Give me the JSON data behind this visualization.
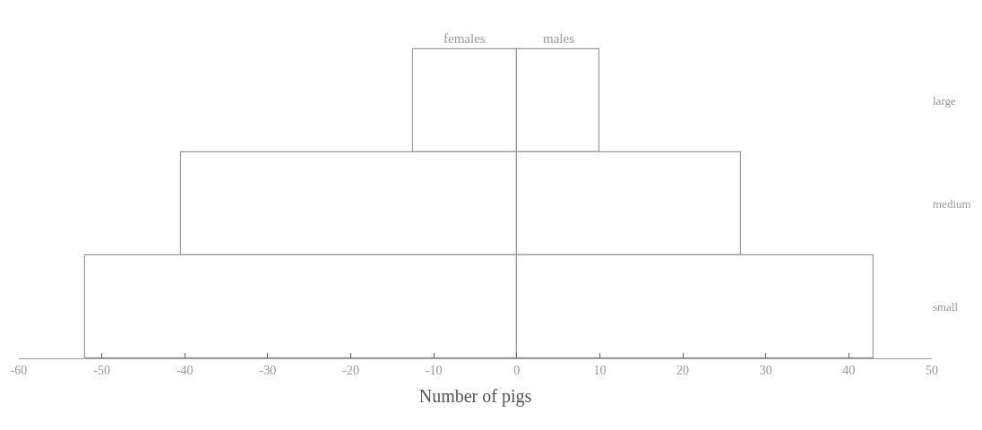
{
  "chart_data": {
    "type": "bar",
    "orientation": "horizontal",
    "stacked": true,
    "categories": [
      "large",
      "medium",
      "small"
    ],
    "series": [
      {
        "name": "females",
        "color": "#9a9a9a",
        "values": [
          -12.5,
          -40.5,
          -52
        ]
      },
      {
        "name": "males",
        "color": "#9a9a9a",
        "values": [
          10,
          27,
          43
        ]
      }
    ],
    "xlabel": "Number of pigs",
    "xlim": [
      -60,
      50
    ],
    "xticks": [
      -60,
      -50,
      -40,
      -30,
      -20,
      -10,
      0,
      10,
      20,
      30,
      40,
      50
    ],
    "legend": false
  }
}
